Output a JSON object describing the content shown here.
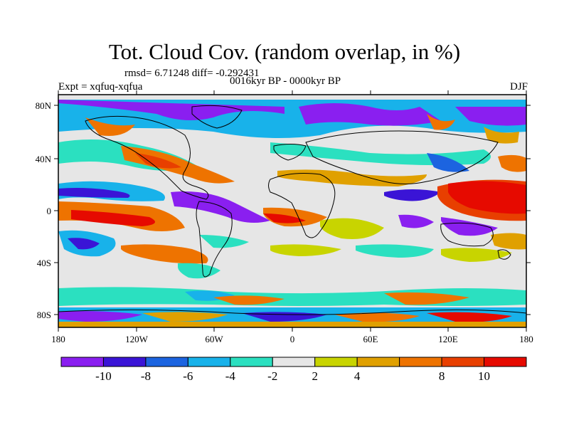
{
  "title": "Tot. Cloud Cov. (random overlap, in %)",
  "stats": "rmsd= 6.71248 diff= -0.292431",
  "experiment": "Expt = xqfuq-xqfua",
  "period": "0016kyr BP - 0000kyr BP",
  "season": "DJF",
  "map": {
    "lon_ticks": [
      "180",
      "120W",
      "60W",
      "0",
      "60E",
      "120E",
      "180"
    ],
    "lat_ticks": [
      "80N",
      "40N",
      "0",
      "40S",
      "80S"
    ]
  },
  "colorbar": {
    "colors": [
      "#8a1ff0",
      "#3a14d6",
      "#1c64e0",
      "#18b2ea",
      "#2be0c0",
      "#e6e6e6",
      "#c8d400",
      "#e0a000",
      "#ee7300",
      "#e83f00",
      "#e60a00"
    ],
    "labels": [
      "-10",
      "-8",
      "-6",
      "-4",
      "-2",
      "2",
      "4",
      "8",
      "10"
    ]
  }
}
